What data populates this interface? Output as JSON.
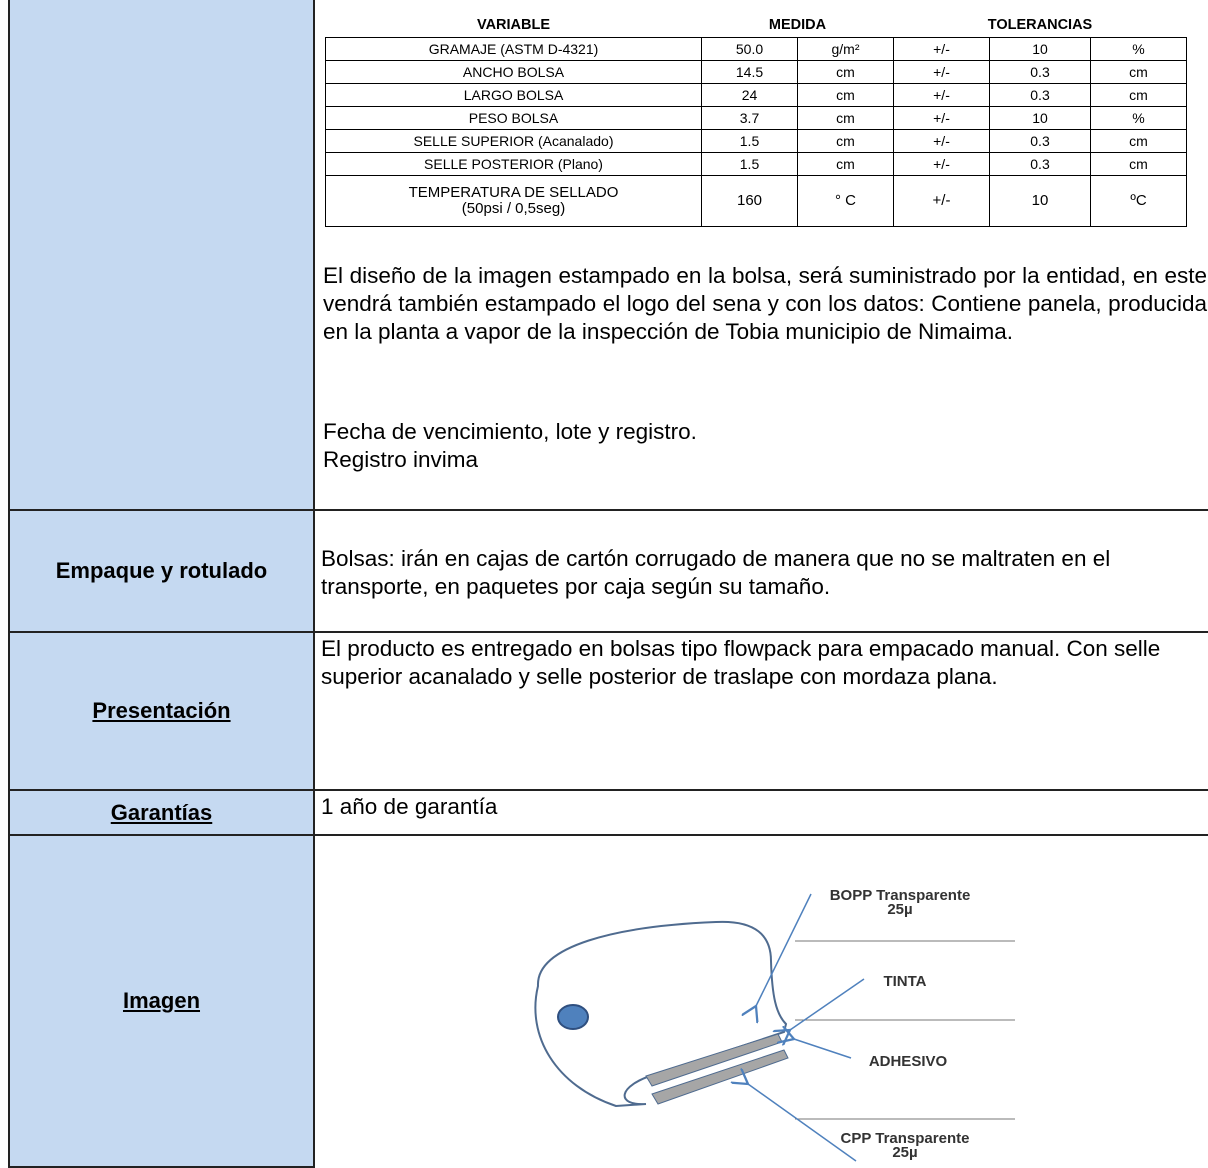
{
  "specifications": {
    "table": {
      "headers": [
        "VARIABLE",
        "MEDIDA",
        "TOLERANCIAS"
      ],
      "rows": [
        [
          "GRAMAJE (ASTM D-4321)",
          "50.0",
          "g/m²",
          "+/-",
          "10",
          "%"
        ],
        [
          "ANCHO BOLSA",
          "14.5",
          "cm",
          "+/-",
          "0.3",
          "cm"
        ],
        [
          "LARGO BOLSA",
          "24",
          "cm",
          "+/-",
          "0.3",
          "cm"
        ],
        [
          "PESO BOLSA",
          "3.7",
          "cm",
          "+/-",
          "10",
          "%"
        ],
        [
          "SELLE SUPERIOR (Acanalado)",
          "1.5",
          "cm",
          "+/-",
          "0.3",
          "cm"
        ],
        [
          "SELLE POSTERIOR (Plano)",
          "1.5",
          "cm",
          "+/-",
          "0.3",
          "cm"
        ],
        [
          "TEMPERATURA DE SELLADO\n(50psi / 0,5seg)",
          "160",
          "° C",
          "+/-",
          "10",
          "ºC"
        ]
      ]
    },
    "paragraphs": [
      "El diseño de la imagen estampado en la bolsa, será suministrado por la entidad, en este vendrá también estampado el logo del sena y con los datos: Contiene panela, producida en la planta a vapor de la inspección de Tobia municipio de Nimaima.",
      "Fecha de vencimiento, lote y registro.\nRegistro invima"
    ]
  },
  "packaging": {
    "label": "Empaque y rotulado",
    "text": "Bolsas: irán en cajas de cartón corrugado de manera que no se maltraten en el transporte, en paquetes por caja según su tamaño."
  },
  "presentation": {
    "label": "Presentación",
    "text": "El producto es entregado en bolsas tipo flowpack para empacado manual. Con selle superior acanalado y selle posterior de traslape con mordaza plana."
  },
  "warranty": {
    "label": "Garantías",
    "text": "1 año de garantía"
  },
  "image": {
    "label": "Imagen",
    "diagram_labels": [
      [
        "BOPP Transparente",
        "25µ"
      ],
      [
        "TINTA"
      ],
      [
        "ADHESIVO"
      ],
      [
        "CPP Transparente",
        "25µ"
      ]
    ]
  }
}
